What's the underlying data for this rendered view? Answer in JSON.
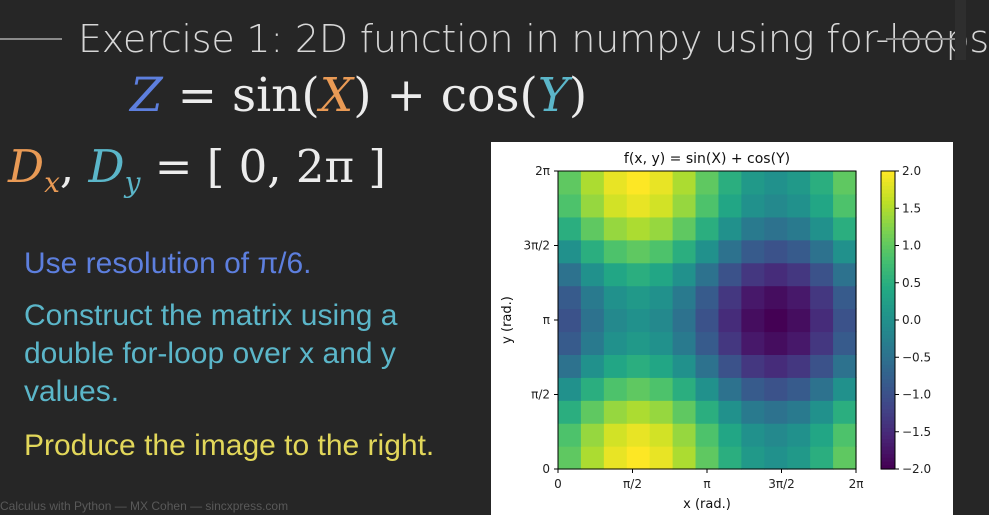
{
  "slide": {
    "title": "Exercise 1: 2D function in numpy using for-loops",
    "equation": {
      "lhs": "Z",
      "eq": "=",
      "sin": "sin(",
      "x": "X",
      "mid": ") + cos(",
      "y": "Y",
      "end": ")"
    },
    "domain": {
      "d": "D",
      "x": "x",
      "comma": ", ",
      "y": "y",
      "rest": " = [ 0, 2π ]"
    },
    "bullets": [
      "Use resolution of π/6.",
      "Construct the matrix using a double for-loop over x and y values.",
      "Produce the image to the right."
    ],
    "footer": "Calculus with Python — MX Cohen — sincxpress.com"
  },
  "colors": {
    "background": "#262626",
    "blue_text": "#5d7fde",
    "teal_text": "#5bb6c9",
    "yellow_text": "#e2d75a",
    "orange_var": "#e99a55",
    "colormap": "viridis"
  },
  "chart_data": {
    "type": "heatmap",
    "title": "f(x, y) = sin(X) + cos(Y)",
    "xlabel": "x (rad.)",
    "ylabel": "y (rad.)",
    "x_ticks": [
      "0",
      "π/2",
      "π",
      "3π/2",
      "2π"
    ],
    "y_ticks": [
      "0",
      "π/2",
      "π",
      "3π/2",
      "2π"
    ],
    "resolution": "π/6",
    "grid_size": 13,
    "function": "sin(X) + cos(Y)",
    "colorbar": {
      "min": -2.0,
      "max": 2.0,
      "ticks": [
        "2.0",
        "1.5",
        "1.0",
        "0.5",
        "0.0",
        "−0.5",
        "−1.0",
        "−1.5",
        "−2.0"
      ]
    },
    "values": [
      [
        1.0,
        1.5,
        1.866,
        2.0,
        1.866,
        1.5,
        1.0,
        0.5,
        0.134,
        0.0,
        0.134,
        0.5,
        1.0
      ],
      [
        0.866,
        1.366,
        1.732,
        1.866,
        1.732,
        1.366,
        0.866,
        0.366,
        0.0,
        -0.134,
        0.0,
        0.366,
        0.866
      ],
      [
        0.5,
        1.0,
        1.366,
        1.5,
        1.366,
        1.0,
        0.5,
        0.0,
        -0.366,
        -0.5,
        -0.366,
        0.0,
        0.5
      ],
      [
        0.0,
        0.5,
        0.866,
        1.0,
        0.866,
        0.5,
        0.0,
        -0.5,
        -0.866,
        -1.0,
        -0.866,
        -0.5,
        0.0
      ],
      [
        -0.5,
        0.0,
        0.366,
        0.5,
        0.366,
        0.0,
        -0.5,
        -1.0,
        -1.366,
        -1.5,
        -1.366,
        -1.0,
        -0.5
      ],
      [
        -0.866,
        -0.366,
        0.0,
        0.134,
        0.0,
        -0.366,
        -0.866,
        -1.366,
        -1.732,
        -1.866,
        -1.732,
        -1.366,
        -0.866
      ],
      [
        -1.0,
        -0.5,
        -0.134,
        0.0,
        -0.134,
        -0.5,
        -1.0,
        -1.5,
        -1.866,
        -2.0,
        -1.866,
        -1.5,
        -1.0
      ],
      [
        -0.866,
        -0.366,
        0.0,
        0.134,
        0.0,
        -0.366,
        -0.866,
        -1.366,
        -1.732,
        -1.866,
        -1.732,
        -1.366,
        -0.866
      ],
      [
        -0.5,
        0.0,
        0.366,
        0.5,
        0.366,
        0.0,
        -0.5,
        -1.0,
        -1.366,
        -1.5,
        -1.366,
        -1.0,
        -0.5
      ],
      [
        0.0,
        0.5,
        0.866,
        1.0,
        0.866,
        0.5,
        0.0,
        -0.5,
        -0.866,
        -1.0,
        -0.866,
        -0.5,
        0.0
      ],
      [
        0.5,
        1.0,
        1.366,
        1.5,
        1.366,
        1.0,
        0.5,
        0.0,
        -0.366,
        -0.5,
        -0.366,
        0.0,
        0.5
      ],
      [
        0.866,
        1.366,
        1.732,
        1.866,
        1.732,
        1.366,
        0.866,
        0.366,
        0.0,
        -0.134,
        0.0,
        0.366,
        0.866
      ],
      [
        1.0,
        1.5,
        1.866,
        2.0,
        1.866,
        1.5,
        1.0,
        0.5,
        0.134,
        0.0,
        0.134,
        0.5,
        1.0
      ]
    ]
  }
}
